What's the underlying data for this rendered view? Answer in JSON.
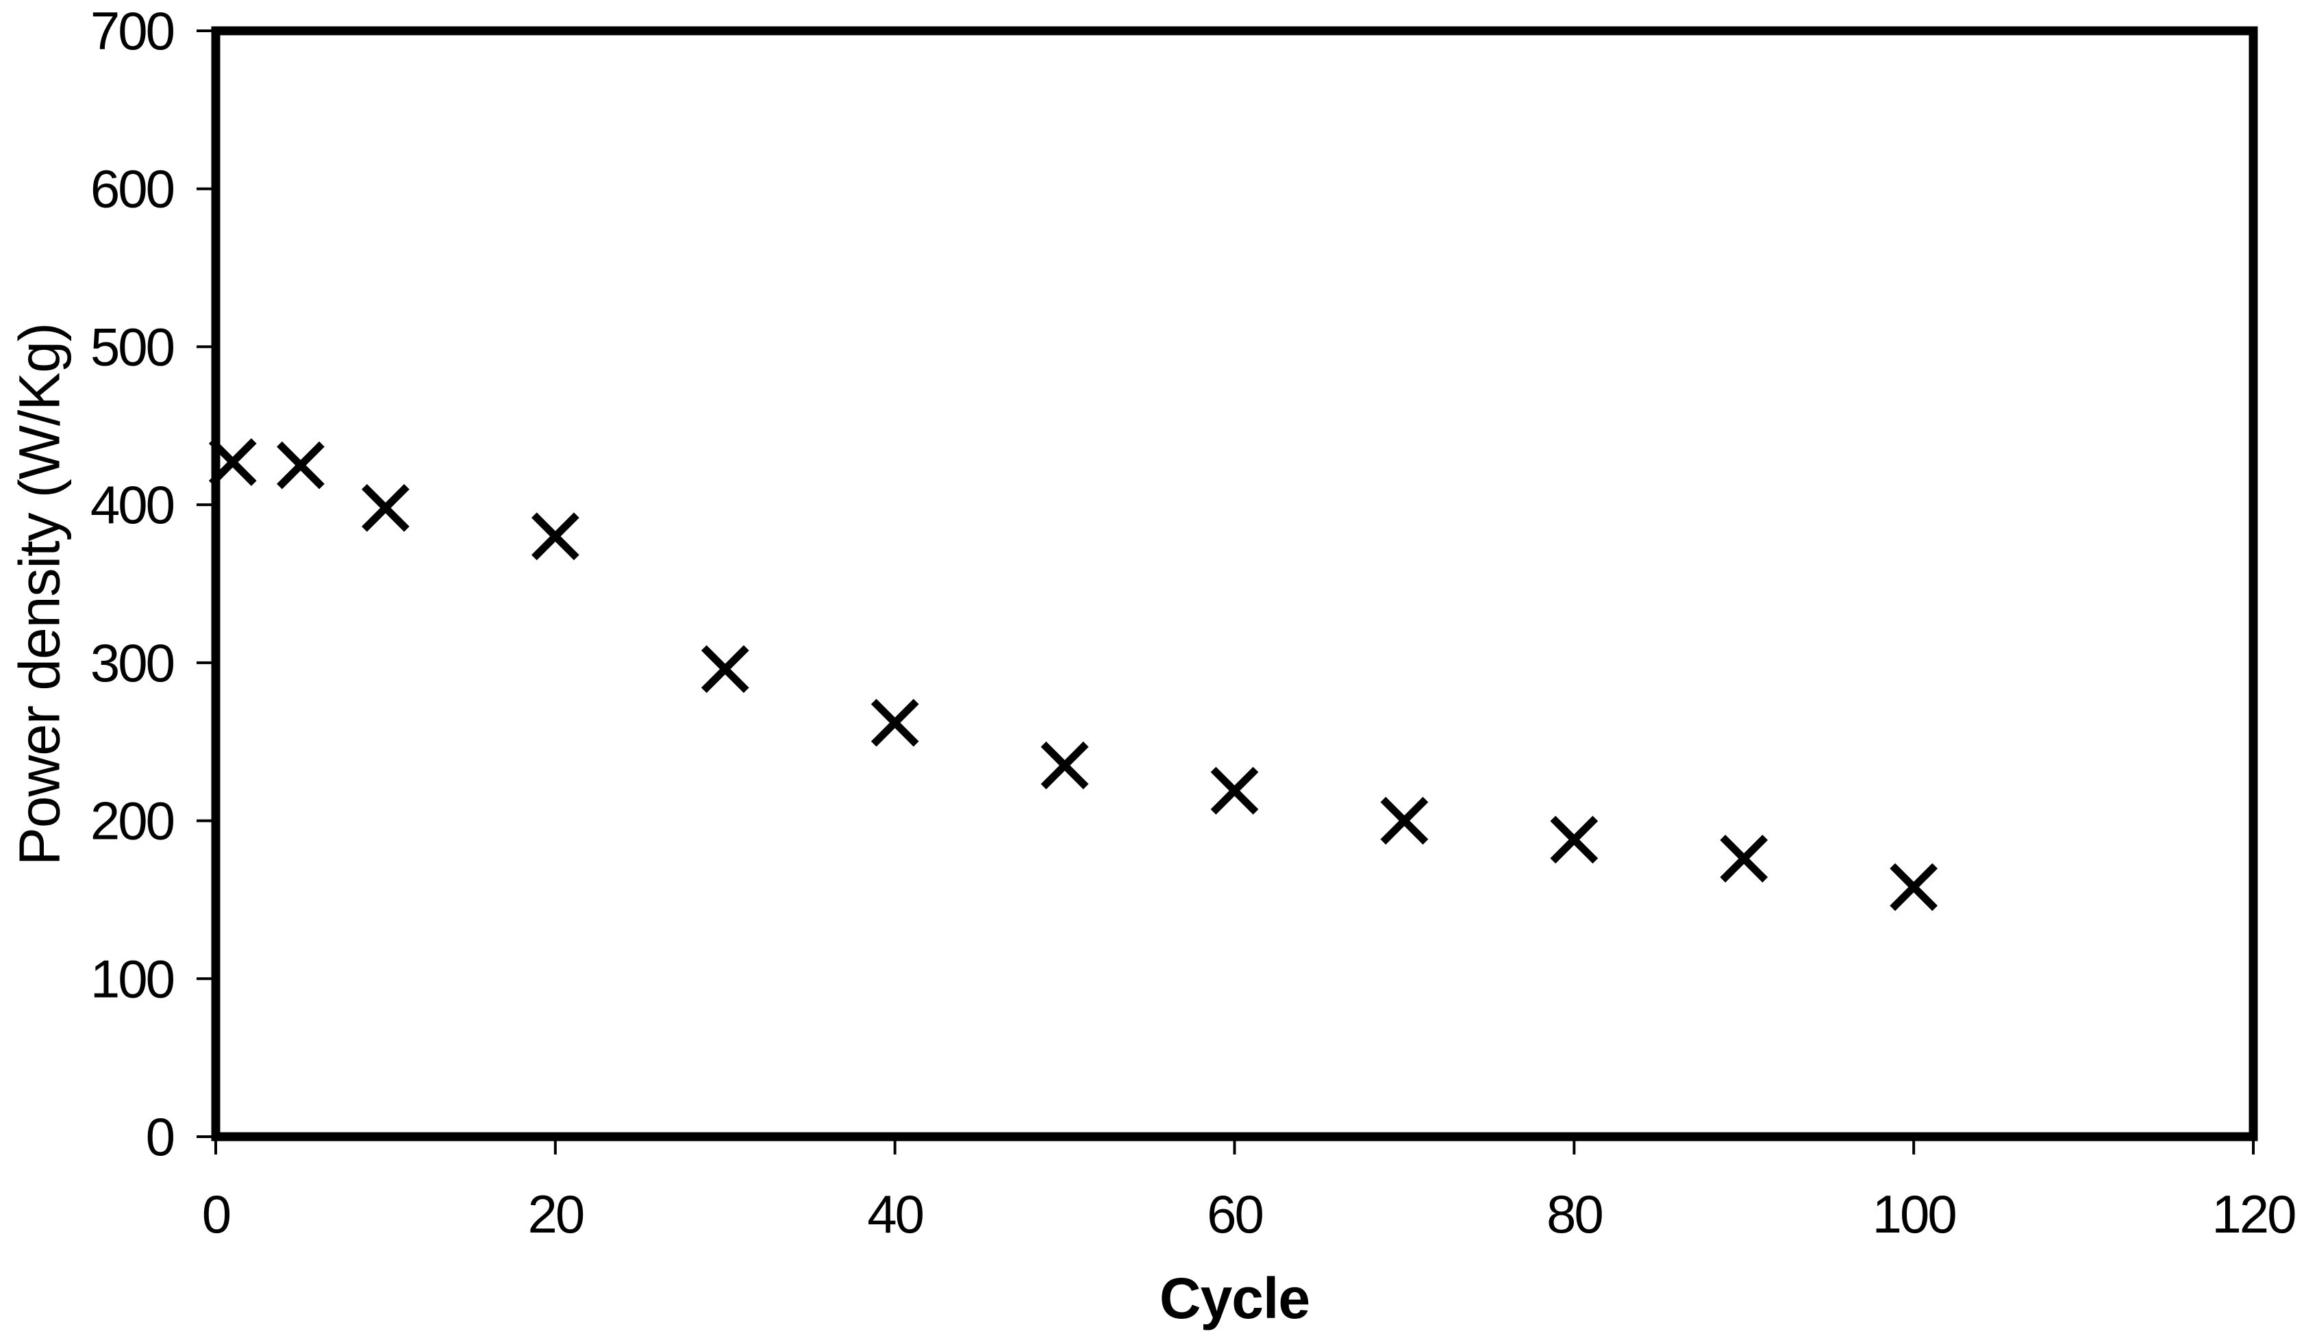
{
  "chart_data": {
    "type": "scatter",
    "title": "",
    "xlabel": "Cycle",
    "ylabel": "Power density (W/Kg)",
    "xlim": [
      0,
      120
    ],
    "ylim": [
      0,
      700
    ],
    "x_ticks": [
      0,
      20,
      40,
      60,
      80,
      100,
      120
    ],
    "y_ticks": [
      0,
      100,
      200,
      300,
      400,
      500,
      600,
      700
    ],
    "grid": false,
    "legend_position": "none",
    "marker": "x",
    "colors": {
      "marker": "#000000",
      "axis": "#000000",
      "text": "#000000",
      "background": "#ffffff"
    },
    "series": [
      {
        "name": "Power density",
        "marker": "x",
        "color": "#000000",
        "points": [
          {
            "x": 1,
            "y": 427
          },
          {
            "x": 5,
            "y": 425
          },
          {
            "x": 10,
            "y": 398
          },
          {
            "x": 20,
            "y": 380
          },
          {
            "x": 30,
            "y": 296
          },
          {
            "x": 40,
            "y": 262
          },
          {
            "x": 50,
            "y": 235
          },
          {
            "x": 60,
            "y": 219
          },
          {
            "x": 70,
            "y": 200
          },
          {
            "x": 80,
            "y": 188
          },
          {
            "x": 90,
            "y": 176
          },
          {
            "x": 100,
            "y": 158
          }
        ]
      }
    ]
  }
}
